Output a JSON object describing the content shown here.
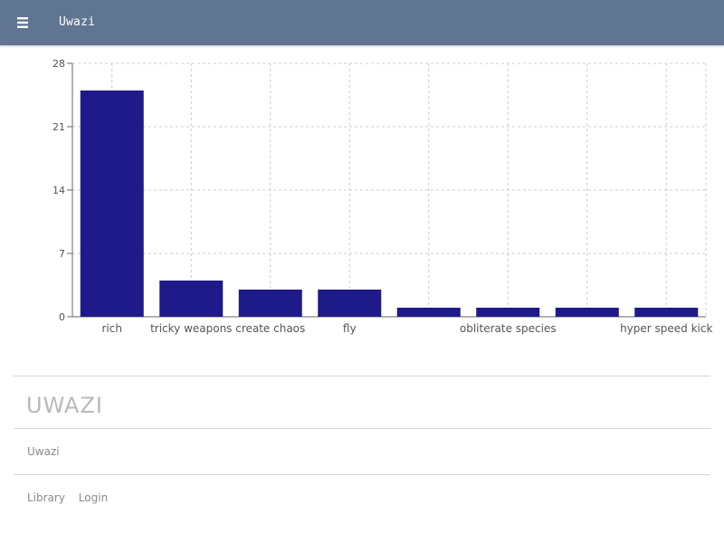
{
  "header": {
    "menu_icon": "hamburger-menu-icon",
    "title": "Uwazi",
    "background": "#5f7591"
  },
  "chart_data": {
    "type": "bar",
    "categories": [
      "rich",
      "tricky weapons",
      "create chaos",
      "fly",
      "",
      "obliterate species",
      "",
      "hyper speed kick"
    ],
    "values": [
      25,
      4,
      3,
      3,
      1,
      1,
      1,
      1
    ],
    "yticks": [
      "0",
      "7",
      "14",
      "21",
      "28"
    ],
    "ylim": [
      0,
      28
    ],
    "grid": true,
    "bar_color": "#1f1a8a",
    "title": "",
    "xlabel": "",
    "ylabel": ""
  },
  "footer": {
    "logo_text": "UWAZI",
    "name": "Uwazi",
    "links": [
      "Library",
      "Login"
    ]
  }
}
